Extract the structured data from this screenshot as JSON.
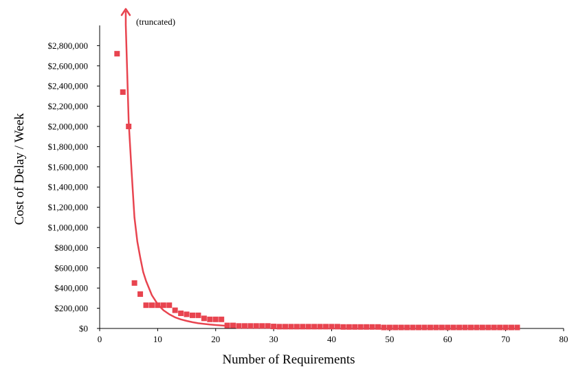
{
  "chart_data": {
    "type": "scatter",
    "title": "",
    "xlabel": "Number of Requirements",
    "ylabel": "Cost of Delay / Week",
    "xlim": [
      0,
      80
    ],
    "ylim": [
      0,
      3000000
    ],
    "x_ticks": [
      0,
      10,
      20,
      30,
      40,
      50,
      60,
      70,
      80
    ],
    "x_tick_labels": [
      "0",
      "10",
      "20",
      "30",
      "40",
      "50",
      "60",
      "70",
      "80"
    ],
    "y_ticks": [
      0,
      200000,
      400000,
      600000,
      800000,
      1000000,
      1200000,
      1400000,
      1600000,
      1800000,
      2000000,
      2200000,
      2400000,
      2600000,
      2800000
    ],
    "y_tick_labels": [
      "$0",
      "$200,000",
      "$400,000",
      "$600,000",
      "$800,000",
      "$1,000,000",
      "$1,200,000",
      "$1,400,000",
      "$1,600,000",
      "$1,800,000",
      "$2,000,000",
      "$2,200,000",
      "$2,400,000",
      "$2,600,000",
      "$2,800,000"
    ],
    "grid": false,
    "legend": "none",
    "color": "#e8444f",
    "annotation": "(truncated)",
    "series": [
      {
        "kind": "points",
        "x": [
          3,
          4,
          5,
          6,
          7,
          8,
          9,
          10,
          11,
          12,
          13,
          14,
          15,
          16,
          17,
          18,
          19,
          20,
          21,
          22,
          23,
          24,
          25,
          26,
          27,
          28,
          29,
          30,
          31,
          32,
          33,
          34,
          35,
          36,
          37,
          38,
          39,
          40,
          41,
          42,
          43,
          44,
          45,
          46,
          47,
          48,
          49,
          50,
          51,
          52,
          53,
          54,
          55,
          56,
          57,
          58,
          59,
          60,
          61,
          62,
          63,
          64,
          65,
          66,
          67,
          68,
          69,
          70,
          71,
          72
        ],
        "y": [
          2720000,
          2340000,
          2000000,
          450000,
          340000,
          230000,
          230000,
          230000,
          230000,
          230000,
          180000,
          150000,
          140000,
          130000,
          130000,
          100000,
          90000,
          90000,
          90000,
          30000,
          30000,
          25000,
          25000,
          25000,
          25000,
          25000,
          25000,
          20000,
          18000,
          18000,
          18000,
          18000,
          18000,
          18000,
          18000,
          18000,
          18000,
          18000,
          18000,
          15000,
          15000,
          15000,
          15000,
          15000,
          15000,
          15000,
          10000,
          10000,
          10000,
          10000,
          10000,
          10000,
          10000,
          10000,
          10000,
          10000,
          10000,
          10000,
          10000,
          10000,
          10000,
          10000,
          10000,
          10000,
          10000,
          10000,
          10000,
          10000,
          10000,
          10000
        ]
      },
      {
        "kind": "fit-curve",
        "x": [
          4.5,
          5,
          5.5,
          6,
          6.5,
          7,
          7.5,
          8,
          9,
          10,
          11,
          12,
          13,
          14,
          15,
          16,
          17,
          18,
          19,
          20,
          21,
          22
        ],
        "y": [
          3000000,
          2050000,
          1560000,
          1100000,
          860000,
          700000,
          560000,
          470000,
          330000,
          240000,
          180000,
          140000,
          110000,
          90000,
          75000,
          62000,
          52000,
          45000,
          39000,
          34000,
          30000,
          26000
        ]
      }
    ]
  }
}
